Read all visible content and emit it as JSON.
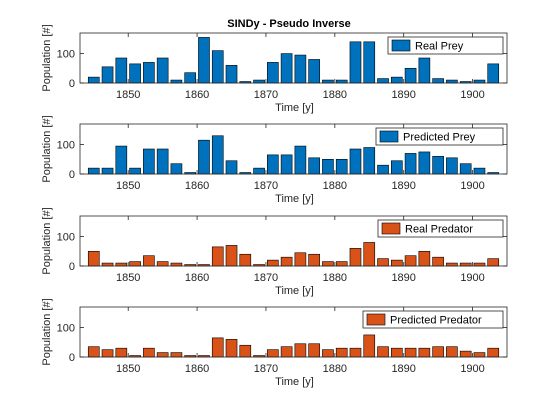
{
  "chart_data": [
    {
      "type": "bar",
      "title": "SINDy - Pseudo Inverse",
      "xlabel": "Time [y]",
      "ylabel": "Population [#]",
      "xlim": [
        1843,
        1905
      ],
      "ylim": [
        0,
        170
      ],
      "yticks": [
        0,
        100
      ],
      "xticks": [
        1850,
        1860,
        1870,
        1880,
        1890,
        1900
      ],
      "legend_location": "top-right",
      "series": [
        {
          "name": "Real Prey",
          "color": "#0072BD",
          "x": [
            1845,
            1847,
            1849,
            1851,
            1853,
            1855,
            1857,
            1859,
            1861,
            1863,
            1865,
            1867,
            1869,
            1871,
            1873,
            1875,
            1877,
            1879,
            1881,
            1883,
            1885,
            1887,
            1889,
            1891,
            1893,
            1895,
            1897,
            1899,
            1901,
            1903
          ],
          "values": [
            20,
            55,
            85,
            65,
            70,
            85,
            10,
            35,
            155,
            110,
            60,
            5,
            10,
            70,
            100,
            95,
            80,
            10,
            10,
            140,
            140,
            15,
            20,
            50,
            85,
            15,
            10,
            5,
            10,
            65
          ]
        }
      ]
    },
    {
      "type": "bar",
      "title": "",
      "xlabel": "Time [y]",
      "ylabel": "Population [#]",
      "xlim": [
        1843,
        1905
      ],
      "ylim": [
        0,
        170
      ],
      "yticks": [
        0,
        100
      ],
      "xticks": [
        1850,
        1860,
        1870,
        1880,
        1890,
        1900
      ],
      "legend_location": "top-right",
      "series": [
        {
          "name": "Predicted Prey",
          "color": "#0072BD",
          "x": [
            1845,
            1847,
            1849,
            1851,
            1853,
            1855,
            1857,
            1859,
            1861,
            1863,
            1865,
            1867,
            1869,
            1871,
            1873,
            1875,
            1877,
            1879,
            1881,
            1883,
            1885,
            1887,
            1889,
            1891,
            1893,
            1895,
            1897,
            1899,
            1901,
            1903
          ],
          "values": [
            20,
            20,
            95,
            20,
            85,
            85,
            35,
            5,
            115,
            130,
            45,
            5,
            20,
            65,
            65,
            95,
            55,
            50,
            50,
            85,
            90,
            30,
            45,
            70,
            75,
            60,
            55,
            35,
            20,
            5
          ]
        }
      ]
    },
    {
      "type": "bar",
      "title": "",
      "xlabel": "Time [y]",
      "ylabel": "Population [#]",
      "xlim": [
        1843,
        1905
      ],
      "ylim": [
        0,
        170
      ],
      "yticks": [
        0,
        100
      ],
      "xticks": [
        1850,
        1860,
        1870,
        1880,
        1890,
        1900
      ],
      "legend_location": "top-right",
      "series": [
        {
          "name": "Real Predator",
          "color": "#D95319",
          "x": [
            1845,
            1847,
            1849,
            1851,
            1853,
            1855,
            1857,
            1859,
            1861,
            1863,
            1865,
            1867,
            1869,
            1871,
            1873,
            1875,
            1877,
            1879,
            1881,
            1883,
            1885,
            1887,
            1889,
            1891,
            1893,
            1895,
            1897,
            1899,
            1901,
            1903
          ],
          "values": [
            50,
            10,
            10,
            15,
            35,
            15,
            10,
            5,
            5,
            65,
            70,
            40,
            5,
            20,
            30,
            45,
            40,
            15,
            15,
            60,
            80,
            25,
            20,
            35,
            50,
            30,
            10,
            10,
            10,
            25
          ]
        }
      ]
    },
    {
      "type": "bar",
      "title": "",
      "xlabel": "Time [y]",
      "ylabel": "Population [#]",
      "xlim": [
        1843,
        1905
      ],
      "ylim": [
        0,
        170
      ],
      "yticks": [
        0,
        100
      ],
      "xticks": [
        1850,
        1860,
        1870,
        1880,
        1890,
        1900
      ],
      "legend_location": "top-right",
      "series": [
        {
          "name": "Predicted Predator",
          "color": "#D95319",
          "x": [
            1845,
            1847,
            1849,
            1851,
            1853,
            1855,
            1857,
            1859,
            1861,
            1863,
            1865,
            1867,
            1869,
            1871,
            1873,
            1875,
            1877,
            1879,
            1881,
            1883,
            1885,
            1887,
            1889,
            1891,
            1893,
            1895,
            1897,
            1899,
            1901,
            1903
          ],
          "values": [
            35,
            25,
            30,
            5,
            30,
            15,
            15,
            5,
            5,
            65,
            60,
            40,
            5,
            25,
            35,
            45,
            45,
            25,
            30,
            30,
            75,
            35,
            30,
            30,
            30,
            35,
            35,
            20,
            15,
            30
          ]
        }
      ]
    }
  ]
}
